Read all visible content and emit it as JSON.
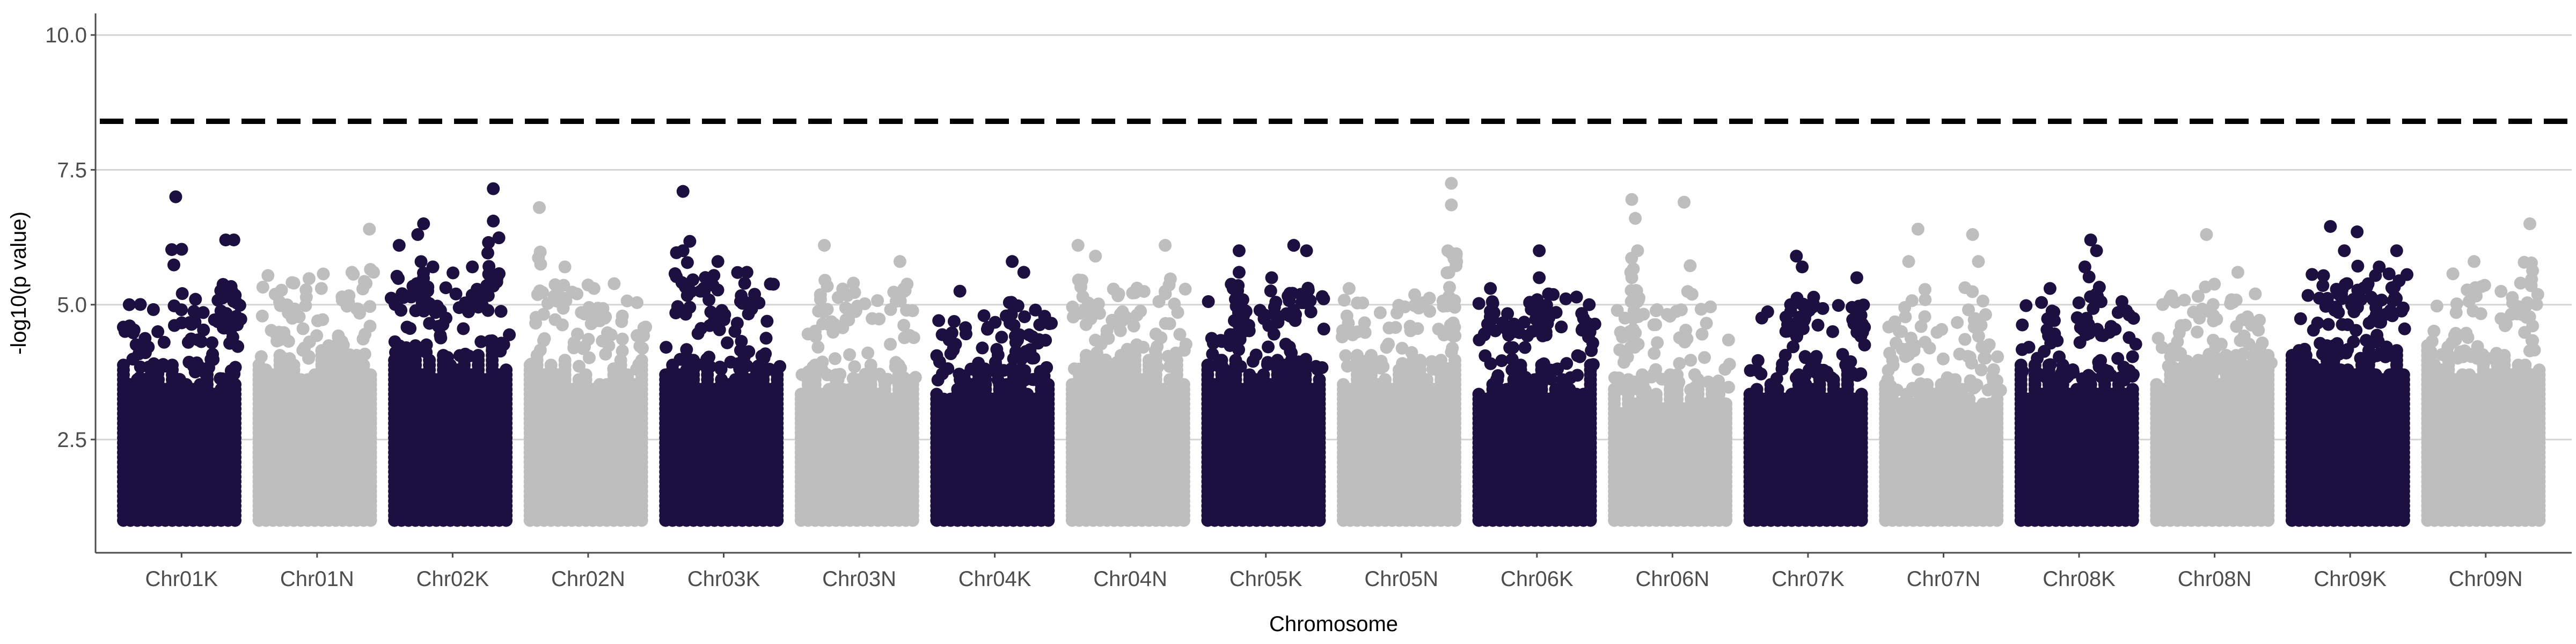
{
  "chart_data": {
    "type": "scatter",
    "subtype": "manhattan",
    "title": "",
    "xlabel": "Chromosome",
    "ylabel": "-log10(p value)",
    "ylim": [
      0.4,
      10.4
    ],
    "yticks": [
      2.5,
      5.0,
      7.5,
      10.0
    ],
    "ytick_labels": [
      "2.5",
      "5.0",
      "7.5",
      "10.0"
    ],
    "grid": "horizontal major lines",
    "threshold": {
      "value": 8.4,
      "style": "dashed",
      "color": "#000000"
    },
    "colors": {
      "dark": "#1c1040",
      "light": "#bebebe"
    },
    "categories": [
      "Chr01K",
      "Chr01N",
      "Chr02K",
      "Chr02N",
      "Chr03K",
      "Chr03N",
      "Chr04K",
      "Chr04N",
      "Chr05K",
      "Chr05N",
      "Chr06K",
      "Chr06N",
      "Chr07K",
      "Chr07N",
      "Chr08K",
      "Chr08N",
      "Chr09K",
      "Chr09N"
    ],
    "series": [
      {
        "chromosome": "Chr01K",
        "color": "dark",
        "dense_top": 3.6,
        "scatter_top": 4.5,
        "peaks": [
          {
            "pos": 0.45,
            "y": 7.0
          },
          {
            "pos": 0.88,
            "y": 6.2
          },
          {
            "pos": 0.95,
            "y": 6.2
          },
          {
            "pos": 0.92,
            "y": 5.3
          },
          {
            "pos": 0.62,
            "y": 5.1
          },
          {
            "pos": 0.05,
            "y": 5.0
          }
        ]
      },
      {
        "chromosome": "Chr01N",
        "color": "light",
        "dense_top": 4.0,
        "scatter_top": 5.0,
        "peaks": [
          {
            "pos": 0.95,
            "y": 6.4
          },
          {
            "pos": 0.8,
            "y": 5.6
          },
          {
            "pos": 0.3,
            "y": 5.4
          }
        ]
      },
      {
        "chromosome": "Chr02K",
        "color": "dark",
        "dense_top": 4.0,
        "scatter_top": 5.0,
        "peaks": [
          {
            "pos": 0.85,
            "y": 7.15
          },
          {
            "pos": 0.85,
            "y": 6.55
          },
          {
            "pos": 0.25,
            "y": 6.5
          },
          {
            "pos": 0.2,
            "y": 6.3
          },
          {
            "pos": 0.04,
            "y": 6.1
          },
          {
            "pos": 0.33,
            "y": 5.7
          },
          {
            "pos": 0.67,
            "y": 5.7
          }
        ]
      },
      {
        "chromosome": "Chr02N",
        "color": "light",
        "dense_top": 3.8,
        "scatter_top": 4.8,
        "peaks": [
          {
            "pos": 0.08,
            "y": 6.8
          },
          {
            "pos": 0.3,
            "y": 5.7
          },
          {
            "pos": 0.55,
            "y": 5.3
          }
        ]
      },
      {
        "chromosome": "Chr03K",
        "color": "dark",
        "dense_top": 3.8,
        "scatter_top": 5.0,
        "peaks": [
          {
            "pos": 0.15,
            "y": 7.1
          },
          {
            "pos": 0.15,
            "y": 6.0
          },
          {
            "pos": 0.45,
            "y": 5.8
          },
          {
            "pos": 0.7,
            "y": 5.6
          }
        ]
      },
      {
        "chromosome": "Chr03N",
        "color": "light",
        "dense_top": 3.6,
        "scatter_top": 4.8,
        "peaks": [
          {
            "pos": 0.2,
            "y": 6.1
          },
          {
            "pos": 0.85,
            "y": 5.8
          },
          {
            "pos": 0.45,
            "y": 5.4
          }
        ]
      },
      {
        "chromosome": "Chr04K",
        "color": "dark",
        "dense_top": 3.6,
        "scatter_top": 4.2,
        "peaks": [
          {
            "pos": 0.65,
            "y": 5.8
          },
          {
            "pos": 0.75,
            "y": 5.6
          },
          {
            "pos": 0.2,
            "y": 5.25
          },
          {
            "pos": 0.85,
            "y": 4.9
          }
        ]
      },
      {
        "chromosome": "Chr04N",
        "color": "light",
        "dense_top": 3.8,
        "scatter_top": 4.8,
        "peaks": [
          {
            "pos": 0.05,
            "y": 6.1
          },
          {
            "pos": 0.8,
            "y": 6.1
          },
          {
            "pos": 0.2,
            "y": 5.9
          },
          {
            "pos": 0.4,
            "y": 5.2
          }
        ]
      },
      {
        "chromosome": "Chr05K",
        "color": "dark",
        "dense_top": 3.8,
        "scatter_top": 4.8,
        "peaks": [
          {
            "pos": 0.27,
            "y": 6.0
          },
          {
            "pos": 0.27,
            "y": 5.6
          },
          {
            "pos": 0.74,
            "y": 6.1
          },
          {
            "pos": 0.85,
            "y": 6.0
          },
          {
            "pos": 0.55,
            "y": 5.5
          }
        ]
      },
      {
        "chromosome": "Chr05N",
        "color": "light",
        "dense_top": 3.8,
        "scatter_top": 4.6,
        "peaks": [
          {
            "pos": 0.93,
            "y": 7.25
          },
          {
            "pos": 0.93,
            "y": 6.85
          },
          {
            "pos": 0.9,
            "y": 6.0
          },
          {
            "pos": 0.05,
            "y": 5.3
          }
        ]
      },
      {
        "chromosome": "Chr06K",
        "color": "dark",
        "dense_top": 3.6,
        "scatter_top": 4.6,
        "peaks": [
          {
            "pos": 0.52,
            "y": 6.0
          },
          {
            "pos": 0.52,
            "y": 5.5
          },
          {
            "pos": 0.1,
            "y": 5.3
          },
          {
            "pos": 0.6,
            "y": 5.2
          },
          {
            "pos": 0.95,
            "y": 5.0
          }
        ]
      },
      {
        "chromosome": "Chr06N",
        "color": "light",
        "dense_top": 3.4,
        "scatter_top": 4.4,
        "peaks": [
          {
            "pos": 0.15,
            "y": 6.95
          },
          {
            "pos": 0.18,
            "y": 6.6
          },
          {
            "pos": 0.6,
            "y": 6.9
          },
          {
            "pos": 0.2,
            "y": 6.0
          },
          {
            "pos": 0.15,
            "y": 5.5
          }
        ]
      },
      {
        "chromosome": "Chr07K",
        "color": "dark",
        "dense_top": 3.6,
        "scatter_top": 4.6,
        "peaks": [
          {
            "pos": 0.4,
            "y": 5.9
          },
          {
            "pos": 0.45,
            "y": 5.7
          },
          {
            "pos": 0.92,
            "y": 5.5
          },
          {
            "pos": 0.35,
            "y": 5.0
          }
        ]
      },
      {
        "chromosome": "Chr07N",
        "color": "light",
        "dense_top": 3.4,
        "scatter_top": 4.2,
        "peaks": [
          {
            "pos": 0.28,
            "y": 6.4
          },
          {
            "pos": 0.2,
            "y": 5.8
          },
          {
            "pos": 0.75,
            "y": 6.3
          },
          {
            "pos": 0.8,
            "y": 5.8
          }
        ]
      },
      {
        "chromosome": "Chr08K",
        "color": "dark",
        "dense_top": 3.6,
        "scatter_top": 4.6,
        "peaks": [
          {
            "pos": 0.6,
            "y": 6.2
          },
          {
            "pos": 0.65,
            "y": 6.0
          },
          {
            "pos": 0.55,
            "y": 5.7
          },
          {
            "pos": 0.25,
            "y": 5.3
          }
        ]
      },
      {
        "chromosome": "Chr08N",
        "color": "light",
        "dense_top": 3.8,
        "scatter_top": 4.6,
        "peaks": [
          {
            "pos": 0.43,
            "y": 6.3
          },
          {
            "pos": 0.7,
            "y": 5.6
          },
          {
            "pos": 0.85,
            "y": 5.2
          }
        ]
      },
      {
        "chromosome": "Chr09K",
        "color": "dark",
        "dense_top": 4.0,
        "scatter_top": 5.0,
        "peaks": [
          {
            "pos": 0.33,
            "y": 6.45
          },
          {
            "pos": 0.56,
            "y": 6.35
          },
          {
            "pos": 0.45,
            "y": 6.0
          },
          {
            "pos": 0.9,
            "y": 6.0
          },
          {
            "pos": 0.75,
            "y": 5.7
          }
        ]
      },
      {
        "chromosome": "Chr09N",
        "color": "light",
        "dense_top": 4.0,
        "scatter_top": 5.0,
        "peaks": [
          {
            "pos": 0.88,
            "y": 6.5
          },
          {
            "pos": 0.4,
            "y": 5.8
          },
          {
            "pos": 0.8,
            "y": 5.4
          }
        ]
      }
    ]
  }
}
